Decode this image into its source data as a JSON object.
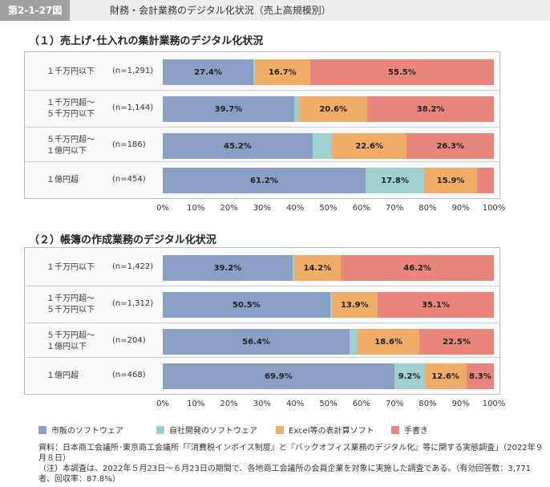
{
  "header": {
    "figure_label": "第2-1-27図",
    "title": "財務・会計業務のデジタル化状況（売上高規模別）"
  },
  "colors": {
    "市販のソフトウェア": "#8a9fc6",
    "自社開発のソフトウェア": "#9fd0cf",
    "Excel等の表計算ソフト": "#f0ad68",
    "手書き": "#e8857d"
  },
  "legend": [
    "市販のソフトウェア",
    "自社開発のソフトウェア",
    "Excel等の表計算ソフト",
    "手書き"
  ],
  "chart_data": [
    {
      "type": "bar",
      "orientation": "horizontal",
      "stacked": "100%",
      "title": "（１）売上げ･仕入れの集計業務のデジタル化状況",
      "categories": [
        {
          "label_lines": [
            "１千万円以下"
          ],
          "n": "(n=1,291)"
        },
        {
          "label_lines": [
            "１千万円超～",
            "５千万円以下"
          ],
          "n": "(n=1,144)"
        },
        {
          "label_lines": [
            "５千万円超～",
            "１億円以下"
          ],
          "n": "(n=186)"
        },
        {
          "label_lines": [
            "１億円超"
          ],
          "n": "(n=454)"
        }
      ],
      "series": [
        {
          "name": "市販のソフトウェア",
          "values": [
            27.4,
            39.7,
            45.2,
            61.2
          ]
        },
        {
          "name": "自社開発のソフトウェア",
          "values": [
            0.4,
            1.5,
            5.9,
            17.8
          ]
        },
        {
          "name": "Excel等の表計算ソフト",
          "values": [
            16.7,
            20.6,
            22.6,
            15.9
          ]
        },
        {
          "name": "手書き",
          "values": [
            55.5,
            38.2,
            26.3,
            5.1
          ]
        }
      ],
      "labels": [
        [
          "27.4%",
          "",
          "16.7%",
          "55.5%"
        ],
        [
          "39.7%",
          "",
          "20.6%",
          "38.2%"
        ],
        [
          "45.2%",
          "",
          "22.6%",
          "26.3%"
        ],
        [
          "61.2%",
          "17.8%",
          "15.9%",
          ""
        ]
      ],
      "xlim": [
        0,
        100
      ],
      "xticks": [
        "0%",
        "10%",
        "20%",
        "30%",
        "40%",
        "50%",
        "60%",
        "70%",
        "80%",
        "90%",
        "100%"
      ],
      "legend_position": "bottom"
    },
    {
      "type": "bar",
      "orientation": "horizontal",
      "stacked": "100%",
      "title": "（２）帳簿の作成業務のデジタル化状況",
      "categories": [
        {
          "label_lines": [
            "１千万円以下"
          ],
          "n": "(n=1,422)"
        },
        {
          "label_lines": [
            "１千万円超～",
            "５千万円以下"
          ],
          "n": "(n=1,312)"
        },
        {
          "label_lines": [
            "５千万円超～",
            "１億円以下"
          ],
          "n": "(n=204)"
        },
        {
          "label_lines": [
            "１億円超"
          ],
          "n": "(n=468)"
        }
      ],
      "series": [
        {
          "name": "市販のソフトウェア",
          "values": [
            39.2,
            50.5,
            56.4,
            69.9
          ]
        },
        {
          "name": "自社開発のソフトウェア",
          "values": [
            0.4,
            0.5,
            2.5,
            9.2
          ]
        },
        {
          "name": "Excel等の表計算ソフト",
          "values": [
            14.2,
            13.9,
            18.6,
            12.6
          ]
        },
        {
          "name": "手書き",
          "values": [
            46.2,
            35.1,
            22.5,
            8.3
          ]
        }
      ],
      "labels": [
        [
          "39.2%",
          "",
          "14.2%",
          "46.2%"
        ],
        [
          "50.5%",
          "",
          "13.9%",
          "35.1%"
        ],
        [
          "56.4%",
          "",
          "18.6%",
          "22.5%"
        ],
        [
          "69.9%",
          "9.2%",
          "12.6%",
          "8.3%"
        ]
      ],
      "xlim": [
        0,
        100
      ],
      "xticks": [
        "0%",
        "10%",
        "20%",
        "30%",
        "40%",
        "50%",
        "60%",
        "70%",
        "80%",
        "90%",
        "100%"
      ],
      "legend_position": "bottom"
    }
  ],
  "notes": {
    "source": "資料：日本商工会議所･東京商工会議所「『消費税インボイス制度』と『バックオフィス業務のデジタル化』等に関する実態調査」（2022年９月８日）",
    "remark": "（注）本調査は、2022年５月23日～６月23日の期間で、各地商工会議所の会員企業を対象に実施した調査である。（有効回答数：3,771者、回収率：87.8%）"
  }
}
